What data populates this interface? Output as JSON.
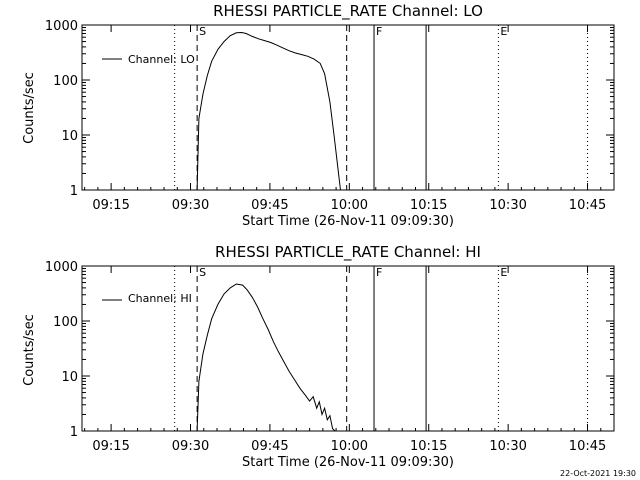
{
  "chart_data": [
    {
      "type": "line",
      "title": "RHESSI PARTICLE_RATE Channel: LO",
      "xlabel": "Start Time (26-Nov-11 09:09:30)",
      "ylabel": "Counts/sec",
      "yscale": "log",
      "ylim": [
        1,
        1000
      ],
      "xlim": [
        "09:09:30",
        "10:50:00"
      ],
      "x_tick_labels": [
        "09:15",
        "09:30",
        "09:45",
        "10:00",
        "10:15",
        "10:30",
        "10:45"
      ],
      "y_tick_labels": [
        "1",
        "10",
        "100",
        "1000"
      ],
      "legend": "top-left",
      "series": [
        {
          "name": "Channel: LO",
          "x": [
            "09:31:15",
            "09:31:35",
            "09:32:20",
            "09:33:10",
            "09:34:00",
            "09:35:10",
            "09:36:20",
            "09:37:30",
            "09:38:40",
            "09:39:40",
            "09:40:30",
            "09:41:40",
            "09:42:50",
            "09:44:00",
            "09:45:10",
            "09:46:20",
            "09:47:30",
            "09:48:40",
            "09:49:50",
            "09:51:00",
            "09:52:10",
            "09:53:20",
            "09:54:30",
            "09:55:20",
            "09:56:20",
            "09:57:10",
            "09:57:50",
            "09:58:20"
          ],
          "values": [
            1.0,
            20,
            55,
            120,
            220,
            360,
            500,
            640,
            720,
            730,
            700,
            620,
            560,
            520,
            480,
            430,
            380,
            340,
            310,
            290,
            270,
            240,
            200,
            130,
            40,
            9,
            2.5,
            1.0
          ]
        }
      ],
      "markers": [
        {
          "label": "",
          "time": "09:27:00",
          "style": "dotted"
        },
        {
          "label": "S",
          "time": "09:31:15",
          "style": "dashed"
        },
        {
          "label": "",
          "time": "09:59:30",
          "style": "dashed"
        },
        {
          "label": "F",
          "time": "10:04:40",
          "style": "solid"
        },
        {
          "label": "",
          "time": "10:14:30",
          "style": "solid"
        },
        {
          "label": "E",
          "time": "10:28:10",
          "style": "dotted"
        },
        {
          "label": "",
          "time": "10:45:00",
          "style": "dotted"
        }
      ]
    },
    {
      "type": "line",
      "title": "RHESSI PARTICLE_RATE Channel: HI",
      "xlabel": "Start Time (26-Nov-11 09:09:30)",
      "ylabel": "Counts/sec",
      "yscale": "log",
      "ylim": [
        1,
        1000
      ],
      "xlim": [
        "09:09:30",
        "10:50:00"
      ],
      "x_tick_labels": [
        "09:15",
        "09:30",
        "09:45",
        "10:00",
        "10:15",
        "10:30",
        "10:45"
      ],
      "y_tick_labels": [
        "1",
        "10",
        "100",
        "1000"
      ],
      "legend": "top-left",
      "series": [
        {
          "name": "Channel: HI",
          "x": [
            "09:31:15",
            "09:31:35",
            "09:32:20",
            "09:33:10",
            "09:34:00",
            "09:35:10",
            "09:36:20",
            "09:37:30",
            "09:38:40",
            "09:39:50",
            "09:40:40",
            "09:41:40",
            "09:42:40",
            "09:43:40",
            "09:44:40",
            "09:45:40",
            "09:46:40",
            "09:47:40",
            "09:48:40",
            "09:49:40",
            "09:50:40",
            "09:51:40",
            "09:52:30",
            "09:53:10",
            "09:53:50",
            "09:54:20",
            "09:54:50",
            "09:55:20",
            "09:55:50",
            "09:56:20",
            "09:56:50",
            "09:57:20"
          ],
          "values": [
            1.0,
            8,
            25,
            55,
            110,
            200,
            310,
            400,
            470,
            450,
            370,
            270,
            180,
            110,
            70,
            42,
            27,
            18,
            12,
            8.5,
            6,
            4.5,
            3.5,
            4.2,
            2.6,
            3.4,
            2.0,
            2.6,
            1.6,
            1.9,
            1.1,
            1.0
          ]
        }
      ],
      "markers": [
        {
          "label": "",
          "time": "09:27:00",
          "style": "dotted"
        },
        {
          "label": "S",
          "time": "09:31:15",
          "style": "dashed"
        },
        {
          "label": "",
          "time": "09:59:30",
          "style": "dashed"
        },
        {
          "label": "F",
          "time": "10:04:40",
          "style": "solid"
        },
        {
          "label": "",
          "time": "10:14:30",
          "style": "solid"
        },
        {
          "label": "E",
          "time": "10:28:10",
          "style": "dotted"
        },
        {
          "label": "",
          "time": "10:45:00",
          "style": "dotted"
        }
      ]
    }
  ],
  "footer": {
    "timestamp": "22-Oct-2021 19:30"
  }
}
